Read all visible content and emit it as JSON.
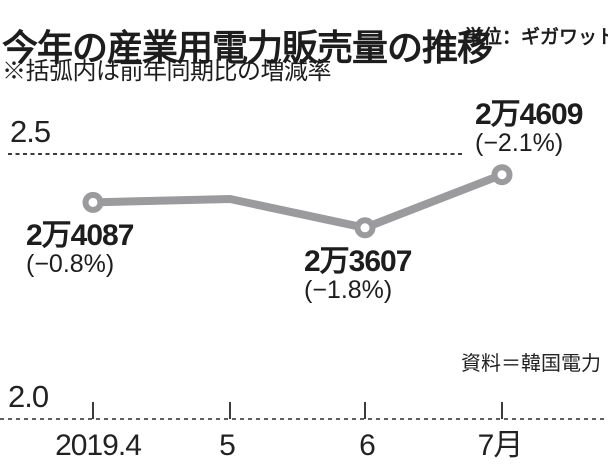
{
  "header": {
    "title": "今年の産業用電力販売量の推移",
    "unit_label": "単位：ギガワット時",
    "note": "※括弧内は前年同期比の増減率"
  },
  "source_label": "資料＝韓国電力",
  "chart_data": {
    "type": "line",
    "title": "今年の産業用電力販売量の推移",
    "unit": "ギガワット時",
    "x": [
      "2019.4",
      "5",
      "6",
      "7月"
    ],
    "values": [
      24087,
      24150,
      23607,
      24609
    ],
    "values_note": "month 5 value unlabeled, estimated from plot position",
    "yoy_change_pct": [
      -0.8,
      null,
      -1.8,
      -2.1
    ],
    "ylim": [
      2.0,
      2.5
    ],
    "y_unit_multiplier": 10000,
    "yticks": {
      "top": "2.5",
      "bottom": "2.0"
    },
    "grid": "dotted horizontal lines at 2.0 and 2.5 only",
    "legend": "none",
    "markers": [
      true,
      false,
      true,
      true
    ],
    "point_labels": [
      {
        "value": "2万4087",
        "change": "(−0.8%)"
      },
      {
        "value": "",
        "change": ""
      },
      {
        "value": "2万3607",
        "change": "(−1.8%)"
      },
      {
        "value": "2万4609",
        "change": "(−2.1%)"
      }
    ],
    "colors": {
      "line": "#9b9b9d",
      "marker_fill": "#ffffff",
      "grid_dots": "#3c3c3c",
      "text": "#1d1d1d"
    }
  }
}
